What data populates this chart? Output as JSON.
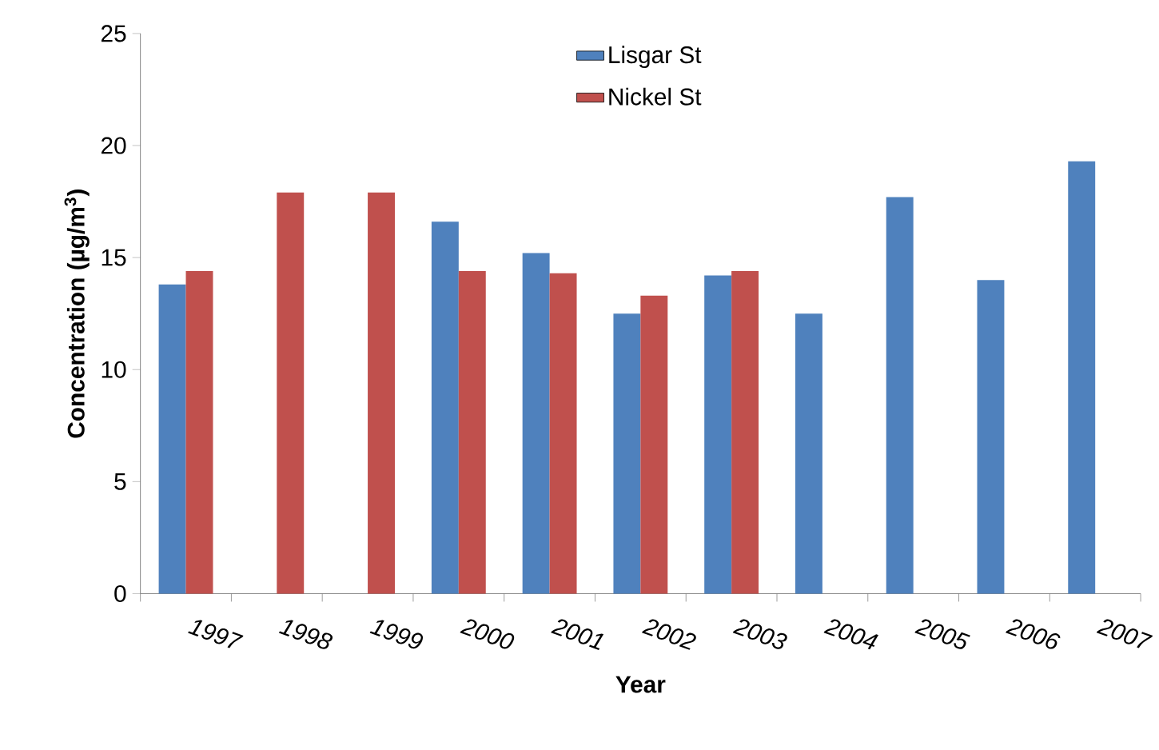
{
  "chart_data": {
    "type": "bar",
    "xlabel": "Year",
    "ylabel": "Concentration (µg/m$^{3}$)",
    "categories": [
      "1997",
      "1998",
      "1999",
      "2000",
      "2001",
      "2002",
      "2003",
      "2004",
      "2005",
      "2006",
      "2007"
    ],
    "series": [
      {
        "name": "Lisgar St",
        "color": "#4f81bd",
        "values": [
          13.8,
          null,
          null,
          16.6,
          15.2,
          12.5,
          14.2,
          12.5,
          17.7,
          14.0,
          19.3
        ]
      },
      {
        "name": "Nickel St",
        "color": "#c0504d",
        "values": [
          14.4,
          17.9,
          17.9,
          14.4,
          14.3,
          13.3,
          14.4,
          null,
          null,
          null,
          null
        ]
      }
    ],
    "ylim": [
      0,
      25
    ],
    "yticks": [
      0,
      5,
      10,
      15,
      20,
      25
    ],
    "grid": false,
    "legend": "top"
  }
}
